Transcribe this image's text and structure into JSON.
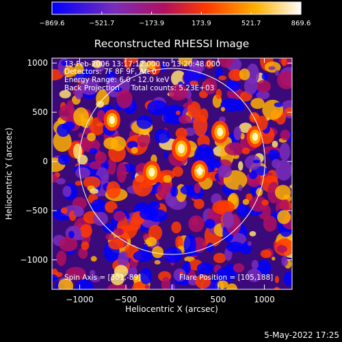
{
  "chart_data": {
    "type": "heatmap",
    "title": "Reconstructed RHESSI Image",
    "xlabel": "Heliocentric X (arcsec)",
    "ylabel": "Heliocentric Y (arcsec)",
    "xlim": [
      -1300,
      1300
    ],
    "ylim": [
      -1300,
      1050
    ],
    "xticks": [
      -1000,
      -500,
      0,
      500,
      1000
    ],
    "yticks": [
      1000,
      500,
      0,
      -500,
      -1000
    ],
    "xtick_labels": [
      "−1000",
      "−500",
      "0",
      "500",
      "1000"
    ],
    "ytick_labels": [
      "1000",
      "500",
      "0",
      "−500",
      "−1000"
    ],
    "colorbar": {
      "range": [
        -869.6,
        869.6
      ],
      "tick_values": [
        -869.6,
        -521.7,
        -173.9,
        173.9,
        521.7,
        869.6
      ],
      "tick_labels": [
        "−869.6",
        "−521.7",
        "−173.9",
        "173.9",
        "521.7",
        "869.6"
      ],
      "colors": [
        "#0000ff",
        "#7a2dbb",
        "#b01060",
        "#ff3a00",
        "#ffb000",
        "#ffffff"
      ]
    },
    "annotations": [
      "13-Feb-2006 13:17:12.000 to 13:20:48.000",
      "Detectors: 7F 8F 9F, Att 0",
      "Energy Range: 6.0 - 12.0 keV",
      "Back Projection     Total counts: 5.23E+03",
      "Spin Axis = [301,-89]",
      "Flare Position = [105,188]"
    ],
    "solar_limb": {
      "center": [
        0,
        0
      ],
      "radius": 975
    },
    "marker": {
      "symbol": "+",
      "x": 301,
      "y": -89
    },
    "bright_sources": [
      {
        "x": 100,
        "y": 130,
        "value": 869.6
      },
      {
        "x": -220,
        "y": -110,
        "value": 700
      },
      {
        "x": 520,
        "y": 300,
        "value": 650
      },
      {
        "x": 300,
        "y": -100,
        "value": 600
      },
      {
        "x": -650,
        "y": 420,
        "value": 550
      },
      {
        "x": 900,
        "y": 250,
        "value": 560
      }
    ],
    "timestamp": "5-May-2022 17:25"
  }
}
